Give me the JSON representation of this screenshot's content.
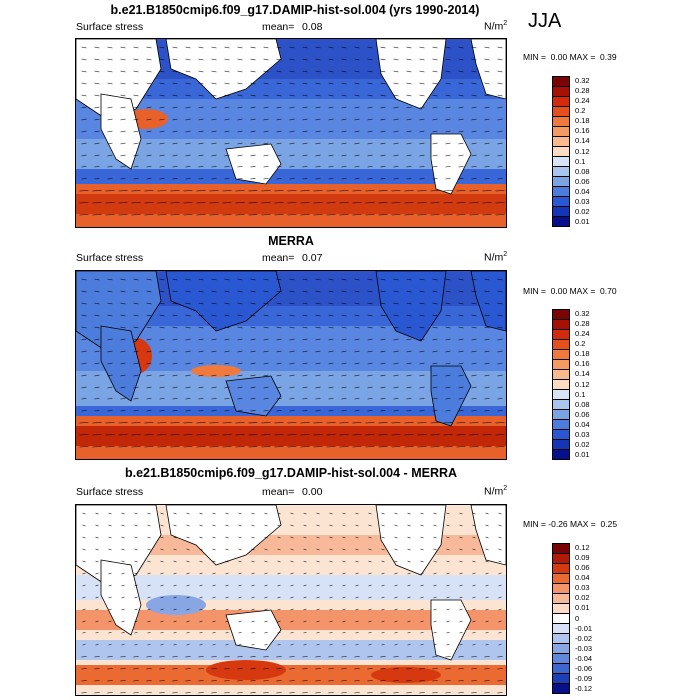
{
  "season": "JJA",
  "panels": [
    {
      "title": "b.e21.B1850cmip6.f09_g17.DAMIP-hist-sol.004 (yrs 1990-2014)",
      "left_label": "Surface stress",
      "mean_label": "mean=",
      "mean_value": "0.08",
      "units": "N/m",
      "units_sup": "2",
      "min_label": "MIN =",
      "min_value": "0.00",
      "max_label": "MAX =",
      "max_value": "0.39",
      "colorbar_levels": [
        "0.32",
        "0.28",
        "0.24",
        "0.2",
        "0.18",
        "0.16",
        "0.14",
        "0.12",
        "0.1",
        "0.08",
        "0.06",
        "0.04",
        "0.03",
        "0.02",
        "0.01"
      ]
    },
    {
      "title": "MERRA",
      "left_label": "Surface stress",
      "mean_label": "mean=",
      "mean_value": "0.07",
      "units": "N/m",
      "units_sup": "2",
      "min_label": "MIN =",
      "min_value": "0.00",
      "max_label": "MAX =",
      "max_value": "0.70",
      "colorbar_levels": [
        "0.32",
        "0.28",
        "0.24",
        "0.2",
        "0.18",
        "0.16",
        "0.14",
        "0.12",
        "0.1",
        "0.08",
        "0.06",
        "0.04",
        "0.03",
        "0.02",
        "0.01"
      ]
    },
    {
      "title": "b.e21.B1850cmip6.f09_g17.DAMIP-hist-sol.004 - MERRA",
      "left_label": "Surface stress",
      "mean_label": "mean=",
      "mean_value": "0.00",
      "units": "N/m",
      "units_sup": "2",
      "min_label": "MIN =",
      "min_value": "-0.26",
      "max_label": "MAX =",
      "max_value": "0.25",
      "colorbar_levels": [
        "0.12",
        "0.09",
        "0.06",
        "0.04",
        "0.03",
        "0.02",
        "0.01",
        "0",
        "-0.01",
        "-0.02",
        "-0.03",
        "-0.04",
        "-0.06",
        "-0.09",
        "-0.12"
      ]
    }
  ],
  "colors": {
    "seq": [
      "#7a0403",
      "#a81004",
      "#d22a0a",
      "#e5501c",
      "#f07a3e",
      "#f59a63",
      "#f9bb8d",
      "#fcdcc0",
      "#d6e4f6",
      "#a9c6ee",
      "#7aa4e4",
      "#4d7ddc",
      "#2a58d2",
      "#1435b8",
      "#06108a"
    ],
    "div": [
      "#7a0403",
      "#b01a06",
      "#d6390f",
      "#ea6a32",
      "#f4946a",
      "#f8b99a",
      "#fcdcc8",
      "#ffffff",
      "#d8e2f6",
      "#b0c5ee",
      "#88a6e4",
      "#5f87da",
      "#3d66ce",
      "#1d3fb5",
      "#06108a"
    ],
    "land": "#ffffff"
  }
}
